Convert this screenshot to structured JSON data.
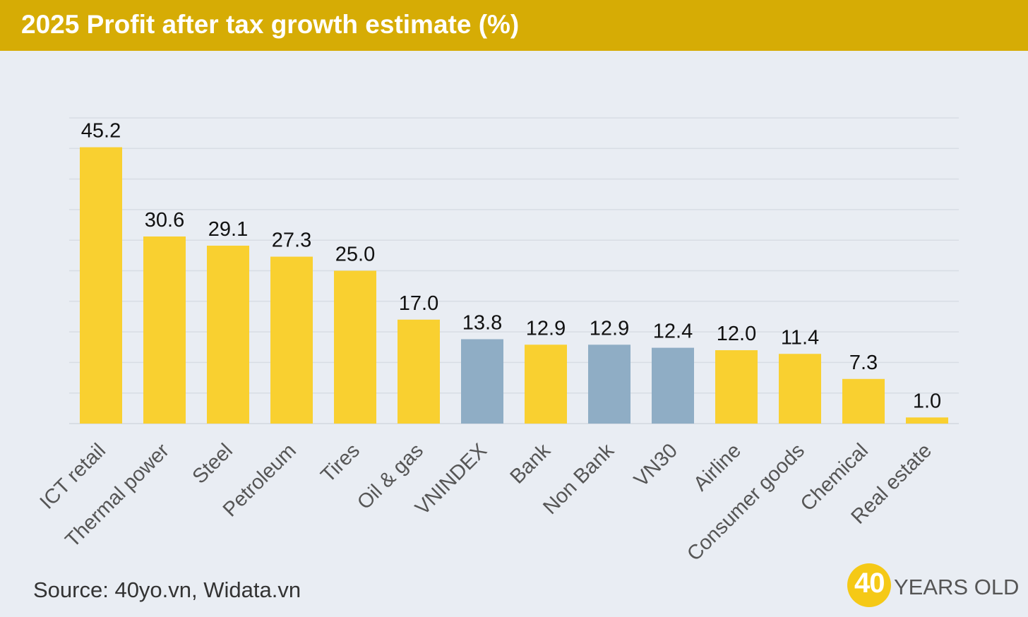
{
  "header": {
    "title": "2025 Profit after tax growth estimate (%)"
  },
  "colors": {
    "header_bg": "#d6ac05",
    "bar_primary": "#f9d030",
    "bar_index": "#8fadc5",
    "background": "#e9edf3",
    "gridline": "#d8dde4"
  },
  "chart_data": {
    "type": "bar",
    "title": "2025 Profit after tax growth estimate (%)",
    "categories": [
      "ICT retail",
      "Thermal power",
      "Steel",
      "Petroleum",
      "Tires",
      "Oil & gas",
      "VNINDEX",
      "Bank",
      "Non Bank",
      "VN30",
      "Airline",
      "Consumer goods",
      "Chemical",
      "Real estate"
    ],
    "values": [
      45.2,
      30.6,
      29.1,
      27.3,
      25.0,
      17.0,
      13.8,
      12.9,
      12.9,
      12.4,
      12.0,
      11.4,
      7.3,
      1.0
    ],
    "value_labels": [
      "45.2",
      "30.6",
      "29.1",
      "27.3",
      "25.0",
      "17.0",
      "13.8",
      "12.9",
      "12.9",
      "12.4",
      "12.0",
      "11.4",
      "7.3",
      "1.0"
    ],
    "highlighted_categories": [
      "VNINDEX",
      "Non Bank",
      "VN30"
    ],
    "ylim": [
      0,
      50
    ],
    "grid": true,
    "legend": "none"
  },
  "footer": {
    "source": "Source: 40yo.vn, Widata.vn",
    "brand_number": "40",
    "brand_text": "YEARS OLD"
  }
}
